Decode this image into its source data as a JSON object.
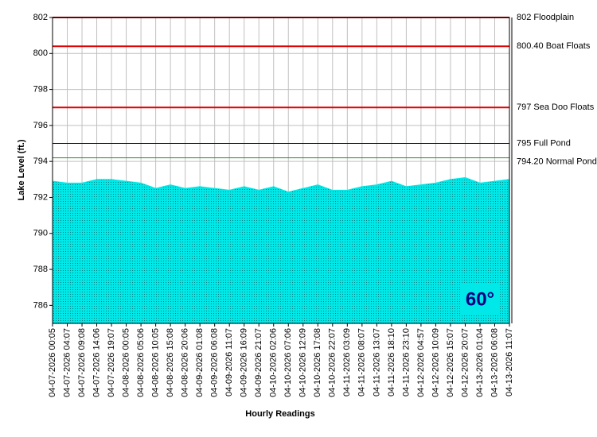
{
  "chart_data": {
    "type": "area",
    "y_label": "Lake Level (ft.)",
    "x_label": "Hourly Readings",
    "annotation": "60°",
    "categories": [
      "04-07-2026 00:05",
      "04-07-2026 04:07",
      "04-07-2026 09:08",
      "04-07-2026 14:06",
      "04-07-2026 19:07",
      "04-08-2026 00:05",
      "04-08-2026 05:06",
      "04-08-2026 10:05",
      "04-08-2026 15:08",
      "04-08-2026 20:06",
      "04-09-2026 01:08",
      "04-09-2026 06:08",
      "04-09-2026 11:07",
      "04-09-2026 16:09",
      "04-09-2026 21:07",
      "04-10-2026 02:06",
      "04-10-2026 07:06",
      "04-10-2026 12:09",
      "04-10-2026 17:08",
      "04-10-2026 22:07",
      "04-11-2026 03:09",
      "04-11-2026 08:07",
      "04-11-2026 13:07",
      "04-11-2026 18:10",
      "04-11-2026 23:10",
      "04-12-2026 04:57",
      "04-12-2026 10:09",
      "04-12-2026 15:07",
      "04-12-2026 20:07",
      "04-13-2026 01:04",
      "04-13-2026 06:08",
      "04-13-2026 11:07"
    ],
    "series": [
      {
        "color": "#00e8e8",
        "values": [
          792.9,
          792.8,
          792.8,
          793.0,
          793.0,
          792.9,
          792.8,
          792.5,
          792.7,
          792.5,
          792.6,
          792.5,
          792.4,
          792.6,
          792.4,
          792.6,
          792.3,
          792.5,
          792.7,
          792.4,
          792.4,
          792.6,
          792.7,
          792.9,
          792.6,
          792.7,
          792.8,
          793.0,
          793.1,
          792.8,
          792.9,
          793.0
        ]
      }
    ],
    "ylim": [
      785,
      802
    ],
    "yticks": [
      786,
      788,
      790,
      792,
      794,
      796,
      798,
      800,
      802
    ],
    "grid": true,
    "reference_lines": [
      {
        "value": 802,
        "label": "802 Floodplain",
        "color": "#e00000"
      },
      {
        "value": 800.4,
        "label": "800.40 Boat Floats",
        "color": "#e00000"
      },
      {
        "value": 797,
        "label": "797 Sea Doo Floats",
        "color": "#e00000"
      },
      {
        "value": 795,
        "label": "795 Full Pond",
        "color": "#000080"
      },
      {
        "value": 794.2,
        "label": "794.20 Normal Pond",
        "color": "#2e8b2e"
      }
    ]
  }
}
